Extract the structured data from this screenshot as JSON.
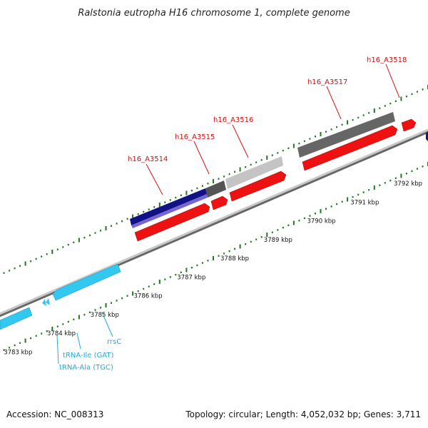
{
  "title": "Ralstonia eutropha H16 chromosome 1, complete genome",
  "footer": {
    "accession": "Accession: NC_008313",
    "summary": "Topology: circular; Length: 4,052,032 bp; Genes: 3,711"
  },
  "colors": {
    "protein_gene": "#ee1111",
    "rna_gene": "#33c8f0",
    "protein_label": "#d01010",
    "rna_label": "#22aadd",
    "backbone": "#999999",
    "tick": "#227722"
  },
  "scale": {
    "unit": "kbp",
    "ticks": [
      {
        "kbp": 3783,
        "label": "3783 kbp"
      },
      {
        "kbp": 3784,
        "label": "3784 kbp"
      },
      {
        "kbp": 3785,
        "label": "3785 kbp"
      },
      {
        "kbp": 3786,
        "label": "3786 kbp"
      },
      {
        "kbp": 3787,
        "label": "3787 kbp"
      },
      {
        "kbp": 3788,
        "label": "3788 kbp"
      },
      {
        "kbp": 3789,
        "label": "3789 kbp"
      },
      {
        "kbp": 3790,
        "label": "3790 kbp"
      },
      {
        "kbp": 3791,
        "label": "3791 kbp"
      },
      {
        "kbp": 3792,
        "label": "3792 kbp"
      }
    ]
  },
  "labels": {
    "protein": [
      "h16_A3514",
      "h16_A3515",
      "h16_A3516",
      "h16_A3517",
      "h16_A3518"
    ],
    "rna": [
      "rrsC",
      "tRNA-Ile (GAT)",
      "tRNA-Ala (TGC)"
    ]
  }
}
